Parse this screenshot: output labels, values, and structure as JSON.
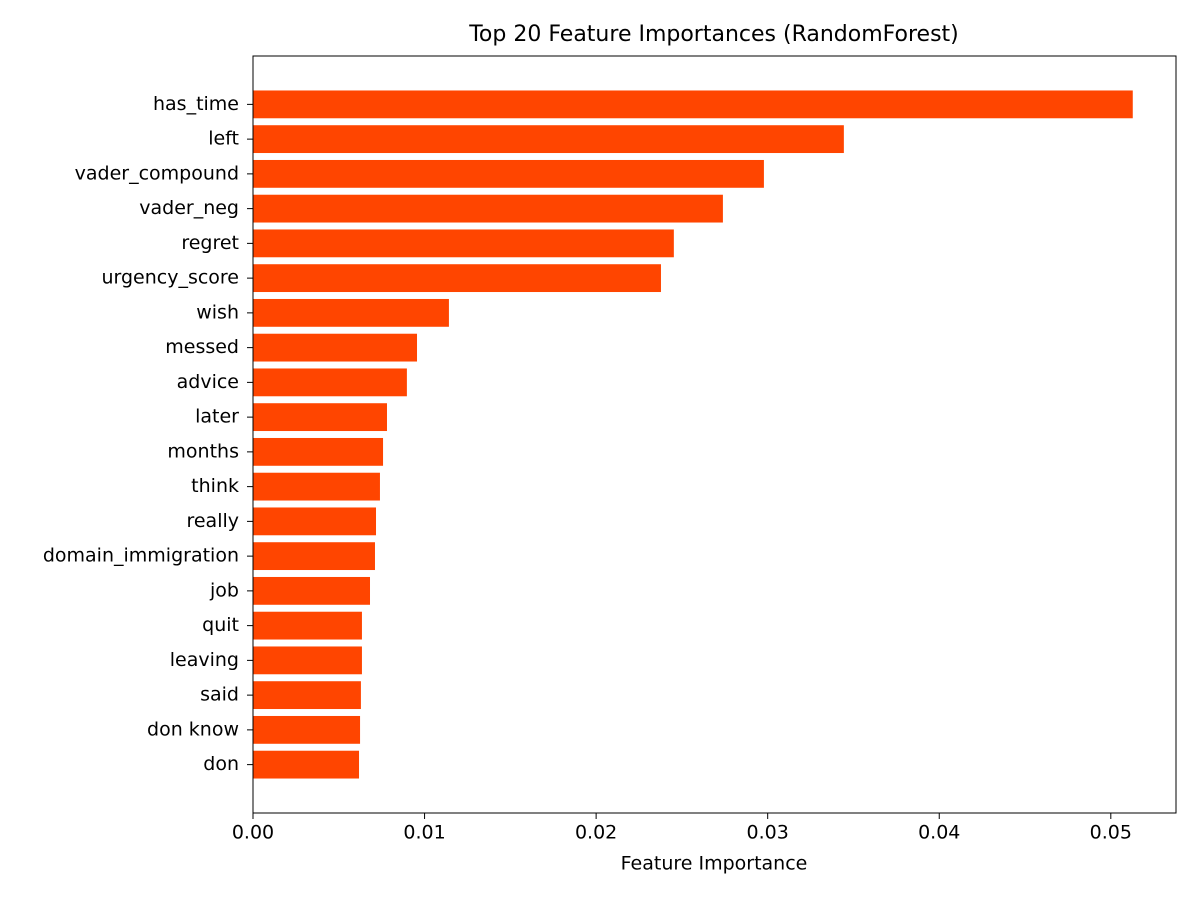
{
  "chart_data": {
    "type": "barh",
    "title": "Top 20 Feature Importances (RandomForest)",
    "x_label": "Feature Importance",
    "categories": [
      "has_time",
      "left",
      "vader_compound",
      "vader_neg",
      "regret",
      "urgency_score",
      "wish",
      "messed",
      "advice",
      "later",
      "months",
      "think",
      "really",
      "domain_immigration",
      "job",
      "quit",
      "leaving",
      "said",
      "don know",
      "don"
    ],
    "values": [
      0.05128,
      0.03444,
      0.02978,
      0.02739,
      0.02453,
      0.02378,
      0.01142,
      0.00956,
      0.00897,
      0.00781,
      0.00758,
      0.0074,
      0.00717,
      0.00711,
      0.00682,
      0.00635,
      0.00635,
      0.00629,
      0.00624,
      0.00618
    ],
    "color": "#ff4500",
    "xlim": [
      0,
      0.0538
    ],
    "xticks": [
      {
        "value": 0,
        "label": "0.00"
      },
      {
        "value": 0.01,
        "label": "0.01"
      },
      {
        "value": 0.02,
        "label": "0.02"
      },
      {
        "value": 0.03,
        "label": "0.03"
      },
      {
        "value": 0.04,
        "label": "0.04"
      },
      {
        "value": 0.05,
        "label": "0.05"
      }
    ],
    "grid": false
  }
}
